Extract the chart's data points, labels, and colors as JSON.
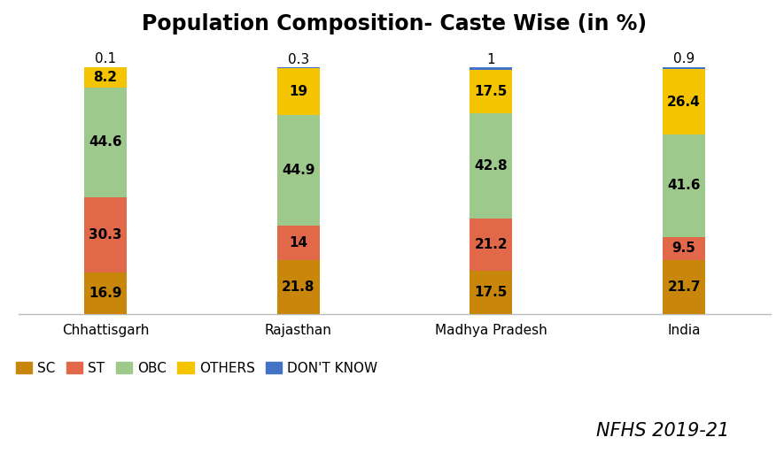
{
  "title": "Population Composition- Caste Wise (in %)",
  "categories": [
    "Chhattisgarh",
    "Rajasthan",
    "Madhya Pradesh",
    "India"
  ],
  "segments": {
    "SC": [
      16.9,
      21.8,
      17.5,
      21.7
    ],
    "ST": [
      30.3,
      14.0,
      21.2,
      9.5
    ],
    "OBC": [
      44.6,
      44.9,
      42.8,
      41.6
    ],
    "OTHERS": [
      8.2,
      19.0,
      17.5,
      26.4
    ],
    "DON'T KNOW": [
      0.1,
      0.3,
      1.0,
      0.9
    ]
  },
  "colors": {
    "SC": "#C8860A",
    "ST": "#E2684A",
    "OBC": "#9DC98D",
    "OTHERS": "#F5C400",
    "DON'T KNOW": "#4472C4"
  },
  "bar_width": 0.22,
  "nfhs_label": "NFHS 2019-21",
  "background_color": "#FFFFFF",
  "title_fontsize": 17,
  "label_fontsize": 11,
  "tick_fontsize": 11,
  "legend_fontsize": 11,
  "nfhs_fontsize": 15
}
